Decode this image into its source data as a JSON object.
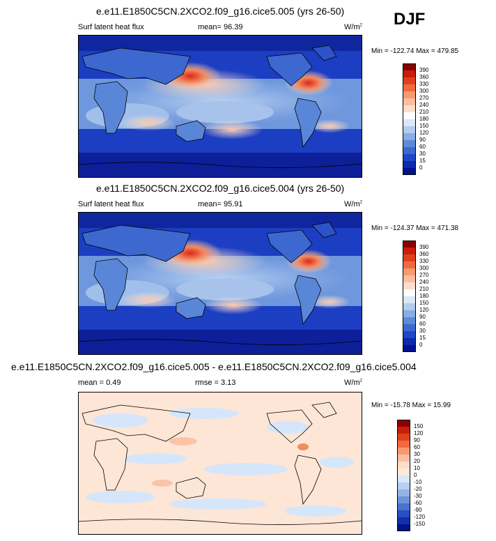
{
  "season": "DJF",
  "panels": [
    {
      "id": "p1",
      "title": "e.e11.E1850C5CN.2XCO2.f09_g16.cice5.005 (yrs 26-50)",
      "left_label": "Surf latent heat flux",
      "stat_label": "mean=",
      "stat_value": "96.39",
      "units": "W/m",
      "units_sup": "2",
      "min_label": "Min =",
      "min_value": "-122.74",
      "max_label": "Max =",
      "max_value": "479.85",
      "colorbar": {
        "labels": [
          "390",
          "360",
          "330",
          "300",
          "270",
          "240",
          "210",
          "180",
          "150",
          "120",
          "90",
          "60",
          "30",
          "15",
          "0"
        ],
        "colors": [
          "#8b0000",
          "#c81e0c",
          "#e0411c",
          "#f06a3e",
          "#f79a70",
          "#fbbda0",
          "#fdddca",
          "#ffffff",
          "#dbe8f8",
          "#b3cdef",
          "#87aee6",
          "#5e8bd8",
          "#3c6ad0",
          "#1f48c4",
          "#0f28b0",
          "#00138c"
        ]
      }
    },
    {
      "id": "p2",
      "title": "e.e11.E1850C5CN.2XCO2.f09_g16.cice5.004 (yrs 26-50)",
      "left_label": "Surf latent heat flux",
      "stat_label": "mean=",
      "stat_value": "95.91",
      "units": "W/m",
      "units_sup": "2",
      "min_label": "Min =",
      "min_value": "-124.37",
      "max_label": "Max =",
      "max_value": "471.38",
      "colorbar": {
        "labels": [
          "390",
          "360",
          "330",
          "300",
          "270",
          "240",
          "210",
          "180",
          "150",
          "120",
          "90",
          "60",
          "30",
          "15",
          "0"
        ],
        "colors": [
          "#8b0000",
          "#c81e0c",
          "#e0411c",
          "#f06a3e",
          "#f79a70",
          "#fbbda0",
          "#fdddca",
          "#ffffff",
          "#dbe8f8",
          "#b3cdef",
          "#87aee6",
          "#5e8bd8",
          "#3c6ad0",
          "#1f48c4",
          "#0f28b0",
          "#00138c"
        ]
      }
    },
    {
      "id": "p3",
      "title": "e.e11.E1850C5CN.2XCO2.f09_g16.cice5.005 - e.e11.E1850C5CN.2XCO2.f09_g16.cice5.004",
      "left_label": "mean =",
      "left_value": "0.49",
      "stat_label": "rmse =",
      "stat_value": "3.13",
      "units": "W/m",
      "units_sup": "2",
      "min_label": "Min =",
      "min_value": "-15.78",
      "max_label": "Max =",
      "max_value": "15.99",
      "colorbar": {
        "labels": [
          "150",
          "120",
          "90",
          "60",
          "30",
          "20",
          "10",
          "0",
          "-10",
          "-20",
          "-30",
          "-60",
          "-90",
          "-120",
          "-150"
        ],
        "colors": [
          "#8b0000",
          "#c81e0c",
          "#e0411c",
          "#f06a3e",
          "#f79a70",
          "#fbbda0",
          "#fdddca",
          "#ffe9d8",
          "#d8e8fb",
          "#b7cff0",
          "#94b4e6",
          "#6e94da",
          "#4a72ce",
          "#2a4fc0",
          "#1230ae",
          "#00138c"
        ]
      }
    }
  ]
}
